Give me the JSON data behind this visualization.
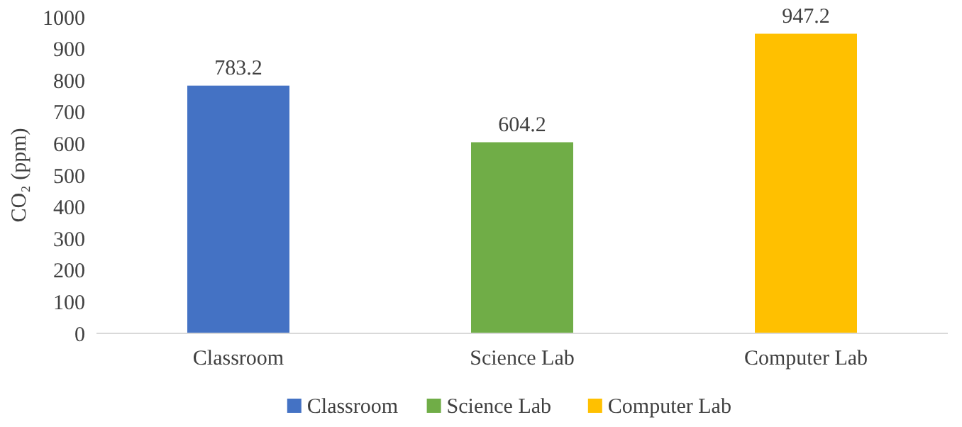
{
  "chart_data": {
    "type": "bar",
    "ylabel": "CO₂ (ppm)",
    "categories": [
      "Classroom",
      "Science Lab",
      "Computer Lab"
    ],
    "stacked": true,
    "series": [
      {
        "name": "Classroom",
        "color": "#4472c4",
        "values": [
          783.2,
          null,
          null
        ]
      },
      {
        "name": "Science Lab",
        "color": "#70ad47",
        "values": [
          null,
          604.2,
          null
        ]
      },
      {
        "name": "Computer Lab",
        "color": "#ffc000",
        "values": [
          null,
          null,
          947.2
        ]
      }
    ],
    "ylim": [
      0,
      1000
    ],
    "yticks": [
      0,
      100,
      200,
      300,
      400,
      500,
      600,
      700,
      800,
      900,
      1000
    ],
    "data_labels": true,
    "legend": "bottom"
  }
}
